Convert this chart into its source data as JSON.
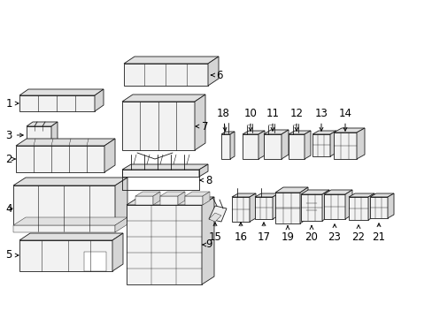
{
  "bg_color": "#ffffff",
  "line_color": "#1a1a1a",
  "fig_width": 4.89,
  "fig_height": 3.6,
  "dpi": 100,
  "lw": 0.6,
  "fill_face": "#f0f0f0",
  "fill_top": "#e0e0e0",
  "fill_side": "#d0d0d0",
  "label_fs": 8.5
}
